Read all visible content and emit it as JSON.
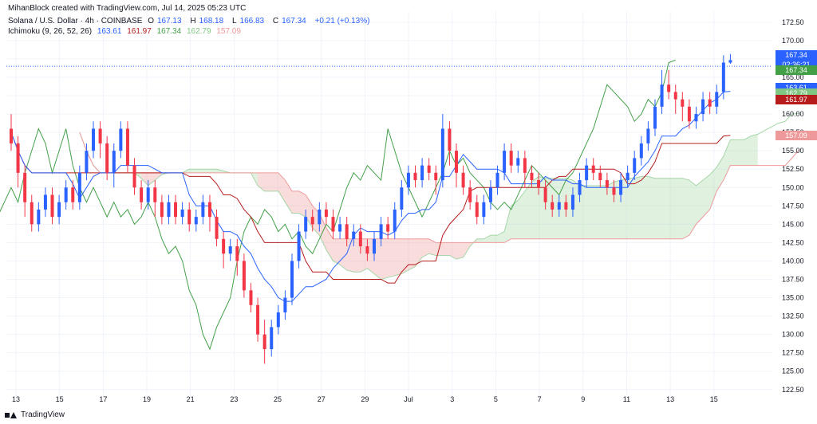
{
  "header": {
    "credit": "MihanBlock created with TradingView.com, Jul 14, 2025 05:23 UTC"
  },
  "legend": {
    "symbol": "Solana / U.S. Dollar · 4h · COINBASE",
    "o_label": "O",
    "o": "167.13",
    "h_label": "H",
    "h": "168.18",
    "l_label": "L",
    "l": "166.83",
    "c_label": "C",
    "c": "167.34",
    "change": "+0.21 (+0.13%)",
    "ichimoku_label": "Ichimoku (9, 26, 52, 26)",
    "ichimoku_values": [
      "163.61",
      "161.97",
      "167.34",
      "162.79",
      "157.09"
    ]
  },
  "colors": {
    "up": "#2962ff",
    "down": "#f23645",
    "conversion": "#2962ff",
    "base": "#b71c1c",
    "lagging": "#43a047",
    "leadA": "#a5d6a7",
    "leadB": "#ef9a9a",
    "ohlc": "#2962ff"
  },
  "footer": {
    "brand": "TradingView"
  },
  "price_tags": [
    {
      "value": "167.34",
      "sub": "02:36:21",
      "color": "#2962ff",
      "price": 167.34
    },
    {
      "value": "167.34",
      "color": "#43a047",
      "price": 166.0
    },
    {
      "value": "163.61",
      "color": "#2962ff",
      "price": 163.61
    },
    {
      "value": "162.79",
      "color": "#81c784",
      "price": 162.79
    },
    {
      "value": "161.97",
      "color": "#b71c1c",
      "price": 161.97
    },
    {
      "value": "157.09",
      "color": "#ef9a9a",
      "price": 157.09
    }
  ],
  "chart_data": {
    "type": "candlestick",
    "yticks": [
      122.5,
      125,
      127.5,
      130,
      132.5,
      135,
      137.5,
      140,
      142.5,
      145,
      147.5,
      150,
      152.5,
      155,
      157.5,
      160,
      162.5,
      165,
      167.5,
      170,
      172.5
    ],
    "ylim": [
      121.5,
      174
    ],
    "xticks": [
      "13",
      "15",
      "17",
      "19",
      "21",
      "23",
      "25",
      "27",
      "29",
      "Jul",
      "3",
      "5",
      "7",
      "9",
      "11",
      "13",
      "15"
    ],
    "candles": [
      [
        158,
        156,
        160,
        155
      ],
      [
        156,
        152,
        157,
        150
      ],
      [
        152,
        148,
        153,
        146
      ],
      [
        148,
        145,
        149,
        144
      ],
      [
        145,
        147,
        148,
        144
      ],
      [
        147,
        149,
        150,
        146
      ],
      [
        149,
        146,
        150,
        145
      ],
      [
        146,
        148,
        149,
        145
      ],
      [
        148,
        150,
        151,
        147
      ],
      [
        150,
        148,
        151,
        147
      ],
      [
        148,
        152,
        153,
        147
      ],
      [
        152,
        155,
        156,
        151
      ],
      [
        155,
        158,
        159,
        154
      ],
      [
        158,
        156,
        159,
        154
      ],
      [
        156,
        152,
        157,
        151
      ],
      [
        152,
        155,
        156,
        150
      ],
      [
        155,
        158,
        159,
        154
      ],
      [
        158,
        153,
        159,
        152
      ],
      [
        153,
        150,
        154,
        149
      ],
      [
        150,
        148,
        151,
        147
      ],
      [
        148,
        150,
        151,
        147
      ],
      [
        150,
        148,
        151,
        146
      ],
      [
        148,
        146,
        149,
        145
      ],
      [
        146,
        148,
        149,
        145
      ],
      [
        148,
        146,
        149,
        145
      ],
      [
        146,
        147,
        148,
        145
      ],
      [
        147,
        145,
        148,
        144
      ],
      [
        145,
        146,
        147,
        144
      ],
      [
        146,
        148,
        149,
        145
      ],
      [
        148,
        146,
        149,
        144
      ],
      [
        146,
        143,
        147,
        142
      ],
      [
        143,
        141,
        144,
        139
      ],
      [
        141,
        142,
        143,
        140
      ],
      [
        142,
        140,
        143,
        138
      ],
      [
        140,
        136,
        141,
        135
      ],
      [
        136,
        134,
        137,
        133
      ],
      [
        134,
        130,
        135,
        129
      ],
      [
        130,
        128,
        132,
        126
      ],
      [
        128,
        131,
        132,
        127
      ],
      [
        131,
        133,
        134,
        130
      ],
      [
        133,
        135,
        136,
        132
      ],
      [
        135,
        140,
        141,
        134
      ],
      [
        140,
        144,
        145,
        139
      ],
      [
        144,
        146,
        147,
        143
      ],
      [
        146,
        145,
        147,
        144
      ],
      [
        145,
        147,
        148,
        144
      ],
      [
        147,
        146,
        148,
        145
      ],
      [
        146,
        144,
        147,
        143
      ],
      [
        144,
        145,
        146,
        143
      ],
      [
        145,
        143,
        146,
        142
      ],
      [
        143,
        144,
        145,
        142
      ],
      [
        144,
        142,
        145,
        141
      ],
      [
        142,
        141,
        143,
        140
      ],
      [
        141,
        143,
        144,
        140
      ],
      [
        143,
        145,
        146,
        142
      ],
      [
        145,
        144,
        146,
        143
      ],
      [
        144,
        147,
        148,
        143
      ],
      [
        147,
        150,
        151,
        146
      ],
      [
        150,
        152,
        153,
        149
      ],
      [
        152,
        151,
        153,
        150
      ],
      [
        151,
        153,
        154,
        150
      ],
      [
        153,
        152,
        154,
        151
      ],
      [
        152,
        151,
        153,
        149
      ],
      [
        151,
        158,
        160,
        150
      ],
      [
        158,
        155,
        159,
        153
      ],
      [
        155,
        152,
        156,
        150
      ],
      [
        152,
        150,
        153,
        149
      ],
      [
        150,
        148,
        151,
        147
      ],
      [
        148,
        146,
        149,
        145
      ],
      [
        146,
        148,
        149,
        145
      ],
      [
        148,
        150,
        151,
        147
      ],
      [
        150,
        152,
        153,
        149
      ],
      [
        152,
        155,
        156,
        151
      ],
      [
        155,
        153,
        156,
        152
      ],
      [
        153,
        154,
        155,
        152
      ],
      [
        154,
        152,
        155,
        150
      ],
      [
        152,
        151,
        153,
        150
      ],
      [
        151,
        150,
        152,
        149
      ],
      [
        150,
        148,
        151,
        147
      ],
      [
        148,
        147,
        149,
        146
      ],
      [
        147,
        148,
        149,
        146
      ],
      [
        148,
        147,
        149,
        146
      ],
      [
        147,
        149,
        150,
        146
      ],
      [
        149,
        151,
        152,
        148
      ],
      [
        151,
        153,
        154,
        150
      ],
      [
        153,
        152,
        154,
        151
      ],
      [
        152,
        151,
        153,
        150
      ],
      [
        151,
        150,
        152,
        149
      ],
      [
        150,
        149,
        151,
        148
      ],
      [
        149,
        151,
        152,
        148
      ],
      [
        151,
        152,
        153,
        150
      ],
      [
        152,
        154,
        155,
        151
      ],
      [
        154,
        156,
        157,
        153
      ],
      [
        156,
        158,
        159,
        155
      ],
      [
        158,
        161,
        162,
        157
      ],
      [
        161,
        164,
        166,
        160
      ],
      [
        164,
        163,
        166,
        162
      ],
      [
        163,
        162,
        164,
        160
      ],
      [
        162,
        161,
        163,
        159
      ],
      [
        161,
        159,
        162,
        158
      ],
      [
        159,
        160,
        161,
        158
      ],
      [
        160,
        162,
        163,
        159
      ],
      [
        162,
        161,
        163,
        160
      ],
      [
        161,
        163,
        164,
        160
      ],
      [
        163,
        167,
        168,
        162
      ],
      [
        167,
        167.34,
        168.18,
        166.83
      ]
    ]
  }
}
